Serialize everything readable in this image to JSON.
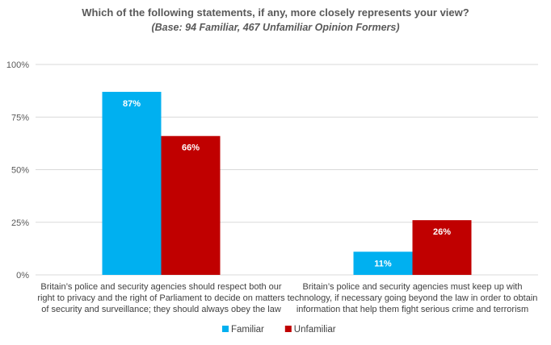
{
  "chart_data": {
    "type": "bar",
    "title": "Which of the following statements, if any, more closely represents your view?",
    "subtitle": "(Base: 94 Familiar, 467 Unfamiliar Opinion Formers)",
    "categories": [
      [
        "Britain’s police and security agencies should respect both our",
        "right to privacy and the right of Parliament to decide on matters",
        "of security and surveillance; they should always obey the law"
      ],
      [
        "Britain’s police and security agencies must keep up with",
        "technology, if necessary going beyond the law in order to obtain",
        "information that help them fight serious crime and terrorism"
      ]
    ],
    "series": [
      {
        "name": "Familiar",
        "color": "#00b0f0",
        "values": [
          87,
          11
        ],
        "labels": [
          "87%",
          "11%"
        ]
      },
      {
        "name": "Unfamiliar",
        "color": "#c00000",
        "values": [
          66,
          26
        ],
        "labels": [
          "66%",
          "26%"
        ]
      }
    ],
    "ylim": [
      0,
      100
    ],
    "yticks": [
      0,
      25,
      50,
      75,
      100
    ],
    "ytick_labels": [
      "0%",
      "25%",
      "50%",
      "75%",
      "100%"
    ],
    "grid": true,
    "legend_position": "bottom"
  }
}
